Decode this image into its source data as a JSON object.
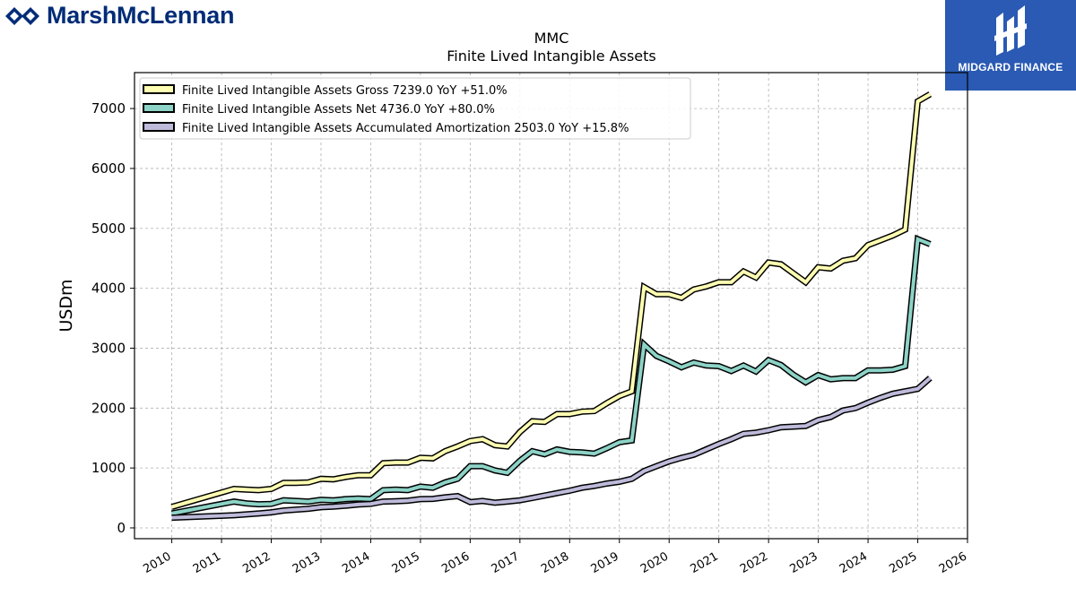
{
  "header": {
    "brand": "MarshMcLennan",
    "partner": "MIDGARD FINANCE",
    "logo_color": "#002c77",
    "partner_color": "#2a5ab3",
    "brand_icon": "marsh-mclennan-logo-icon",
    "partner_icon": "midgard-monogram-icon"
  },
  "chart_data": {
    "type": "line",
    "title": "MMC",
    "subtitle": "Finite Lived Intangible Assets",
    "ylabel": "USDm",
    "xlabel": "",
    "xlim": [
      2009.25,
      2026.0
    ],
    "ylim": [
      -180,
      7600
    ],
    "x_ticks": [
      "2010",
      "2011",
      "2012",
      "2013",
      "2014",
      "2015",
      "2016",
      "2017",
      "2018",
      "2019",
      "2020",
      "2021",
      "2022",
      "2023",
      "2024",
      "2025",
      "2026"
    ],
    "y_ticks": [
      0,
      1000,
      2000,
      3000,
      4000,
      5000,
      6000,
      7000
    ],
    "grid": true,
    "legend_position": "top-left",
    "series": [
      {
        "name": "Finite Lived Intangible Assets Gross",
        "legend": "Finite Lived Intangible Assets Gross  7239.0 YoY +51.0%",
        "color": "#ffffb3",
        "points": [
          [
            "2009-12-31",
            350
          ],
          [
            "2011-03-31",
            650
          ],
          [
            "2011-06-30",
            640
          ],
          [
            "2011-09-30",
            630
          ],
          [
            "2011-12-31",
            650
          ],
          [
            "2012-03-31",
            750
          ],
          [
            "2012-06-30",
            750
          ],
          [
            "2012-09-30",
            760
          ],
          [
            "2012-12-31",
            820
          ],
          [
            "2013-03-31",
            810
          ],
          [
            "2013-06-30",
            850
          ],
          [
            "2013-09-30",
            880
          ],
          [
            "2013-12-31",
            880
          ],
          [
            "2014-03-31",
            1080
          ],
          [
            "2014-06-30",
            1090
          ],
          [
            "2014-09-30",
            1090
          ],
          [
            "2014-12-31",
            1170
          ],
          [
            "2015-03-31",
            1160
          ],
          [
            "2015-06-30",
            1280
          ],
          [
            "2015-09-30",
            1360
          ],
          [
            "2015-12-31",
            1450
          ],
          [
            "2016-03-31",
            1480
          ],
          [
            "2016-06-30",
            1380
          ],
          [
            "2016-09-30",
            1360
          ],
          [
            "2016-12-31",
            1600
          ],
          [
            "2017-03-31",
            1780
          ],
          [
            "2017-06-30",
            1770
          ],
          [
            "2017-09-30",
            1900
          ],
          [
            "2017-12-31",
            1900
          ],
          [
            "2018-03-31",
            1940
          ],
          [
            "2018-06-30",
            1950
          ],
          [
            "2018-09-30",
            2080
          ],
          [
            "2018-12-31",
            2200
          ],
          [
            "2019-03-31",
            2280
          ],
          [
            "2019-06-30",
            4020
          ],
          [
            "2019-09-30",
            3900
          ],
          [
            "2019-12-31",
            3900
          ],
          [
            "2020-03-31",
            3840
          ],
          [
            "2020-06-30",
            3980
          ],
          [
            "2020-09-30",
            4030
          ],
          [
            "2020-12-31",
            4100
          ],
          [
            "2021-03-31",
            4100
          ],
          [
            "2021-06-30",
            4280
          ],
          [
            "2021-09-30",
            4180
          ],
          [
            "2021-12-31",
            4430
          ],
          [
            "2022-03-31",
            4400
          ],
          [
            "2022-06-30",
            4250
          ],
          [
            "2022-09-30",
            4100
          ],
          [
            "2022-12-31",
            4350
          ],
          [
            "2023-03-31",
            4330
          ],
          [
            "2023-06-30",
            4460
          ],
          [
            "2023-09-30",
            4500
          ],
          [
            "2023-12-31",
            4720
          ],
          [
            "2024-03-31",
            4800
          ],
          [
            "2024-06-30",
            4880
          ],
          [
            "2024-09-30",
            4980
          ],
          [
            "2024-12-31",
            7120
          ],
          [
            "2025-03-31",
            7239
          ]
        ]
      },
      {
        "name": "Finite Lived Intangible Assets Net",
        "legend": "Finite Lived Intangible Assets Net  4736.0 YoY +80.0%",
        "color": "#8dd3c7",
        "points": [
          [
            "2009-12-31",
            240
          ],
          [
            "2011-03-31",
            440
          ],
          [
            "2011-06-30",
            410
          ],
          [
            "2011-09-30",
            395
          ],
          [
            "2011-12-31",
            400
          ],
          [
            "2012-03-31",
            460
          ],
          [
            "2012-06-30",
            450
          ],
          [
            "2012-09-30",
            440
          ],
          [
            "2012-12-31",
            470
          ],
          [
            "2013-03-31",
            460
          ],
          [
            "2013-06-30",
            480
          ],
          [
            "2013-09-30",
            490
          ],
          [
            "2013-12-31",
            480
          ],
          [
            "2014-03-31",
            630
          ],
          [
            "2014-06-30",
            640
          ],
          [
            "2014-09-30",
            630
          ],
          [
            "2014-12-31",
            690
          ],
          [
            "2015-03-31",
            670
          ],
          [
            "2015-06-30",
            760
          ],
          [
            "2015-09-30",
            820
          ],
          [
            "2015-12-31",
            1030
          ],
          [
            "2016-03-31",
            1030
          ],
          [
            "2016-06-30",
            960
          ],
          [
            "2016-09-30",
            920
          ],
          [
            "2016-12-31",
            1120
          ],
          [
            "2017-03-31",
            1280
          ],
          [
            "2017-06-30",
            1230
          ],
          [
            "2017-09-30",
            1310
          ],
          [
            "2017-12-31",
            1270
          ],
          [
            "2018-03-31",
            1260
          ],
          [
            "2018-06-30",
            1240
          ],
          [
            "2018-09-30",
            1330
          ],
          [
            "2018-12-31",
            1430
          ],
          [
            "2019-03-31",
            1460
          ],
          [
            "2019-06-30",
            3060
          ],
          [
            "2019-09-30",
            2870
          ],
          [
            "2019-12-31",
            2780
          ],
          [
            "2020-03-31",
            2680
          ],
          [
            "2020-06-30",
            2760
          ],
          [
            "2020-09-30",
            2710
          ],
          [
            "2020-12-31",
            2700
          ],
          [
            "2021-03-31",
            2620
          ],
          [
            "2021-06-30",
            2710
          ],
          [
            "2021-09-30",
            2610
          ],
          [
            "2021-12-31",
            2800
          ],
          [
            "2022-03-31",
            2720
          ],
          [
            "2022-06-30",
            2560
          ],
          [
            "2022-09-30",
            2430
          ],
          [
            "2022-12-31",
            2550
          ],
          [
            "2023-03-31",
            2480
          ],
          [
            "2023-06-30",
            2500
          ],
          [
            "2023-09-30",
            2500
          ],
          [
            "2023-12-31",
            2630
          ],
          [
            "2024-03-31",
            2630
          ],
          [
            "2024-06-30",
            2640
          ],
          [
            "2024-09-30",
            2700
          ],
          [
            "2024-12-31",
            4820
          ],
          [
            "2025-03-31",
            4736
          ]
        ]
      },
      {
        "name": "Finite Lived Intangible Assets Accumulated Amortization",
        "legend": "Finite Lived Intangible Assets Accumulated Amortization  2503.0 YoY +15.8%",
        "color": "#bebada",
        "points": [
          [
            "2009-12-31",
            170
          ],
          [
            "2011-03-31",
            210
          ],
          [
            "2011-06-30",
            225
          ],
          [
            "2011-09-30",
            240
          ],
          [
            "2011-12-31",
            260
          ],
          [
            "2012-03-31",
            290
          ],
          [
            "2012-06-30",
            305
          ],
          [
            "2012-09-30",
            320
          ],
          [
            "2012-12-31",
            345
          ],
          [
            "2013-03-31",
            355
          ],
          [
            "2013-06-30",
            370
          ],
          [
            "2013-09-30",
            390
          ],
          [
            "2013-12-31",
            400
          ],
          [
            "2014-03-31",
            440
          ],
          [
            "2014-06-30",
            445
          ],
          [
            "2014-09-30",
            455
          ],
          [
            "2014-12-31",
            480
          ],
          [
            "2015-03-31",
            485
          ],
          [
            "2015-06-30",
            510
          ],
          [
            "2015-09-30",
            530
          ],
          [
            "2015-12-31",
            430
          ],
          [
            "2016-03-31",
            450
          ],
          [
            "2016-06-30",
            420
          ],
          [
            "2016-09-30",
            440
          ],
          [
            "2016-12-31",
            460
          ],
          [
            "2017-03-31",
            500
          ],
          [
            "2017-06-30",
            540
          ],
          [
            "2017-09-30",
            580
          ],
          [
            "2017-12-31",
            620
          ],
          [
            "2018-03-31",
            670
          ],
          [
            "2018-06-30",
            700
          ],
          [
            "2018-09-30",
            740
          ],
          [
            "2018-12-31",
            770
          ],
          [
            "2019-03-31",
            820
          ],
          [
            "2019-06-30",
            950
          ],
          [
            "2019-09-30",
            1030
          ],
          [
            "2019-12-31",
            1110
          ],
          [
            "2020-03-31",
            1170
          ],
          [
            "2020-06-30",
            1220
          ],
          [
            "2020-09-30",
            1310
          ],
          [
            "2020-12-31",
            1400
          ],
          [
            "2021-03-31",
            1480
          ],
          [
            "2021-06-30",
            1570
          ],
          [
            "2021-09-30",
            1590
          ],
          [
            "2021-12-31",
            1630
          ],
          [
            "2022-03-31",
            1680
          ],
          [
            "2022-06-30",
            1690
          ],
          [
            "2022-09-30",
            1700
          ],
          [
            "2022-12-31",
            1800
          ],
          [
            "2023-03-31",
            1850
          ],
          [
            "2023-06-30",
            1960
          ],
          [
            "2023-09-30",
            2000
          ],
          [
            "2023-12-31",
            2090
          ],
          [
            "2024-03-31",
            2170
          ],
          [
            "2024-06-30",
            2240
          ],
          [
            "2024-09-30",
            2280
          ],
          [
            "2024-12-31",
            2320
          ],
          [
            "2025-03-31",
            2503
          ]
        ]
      }
    ]
  }
}
